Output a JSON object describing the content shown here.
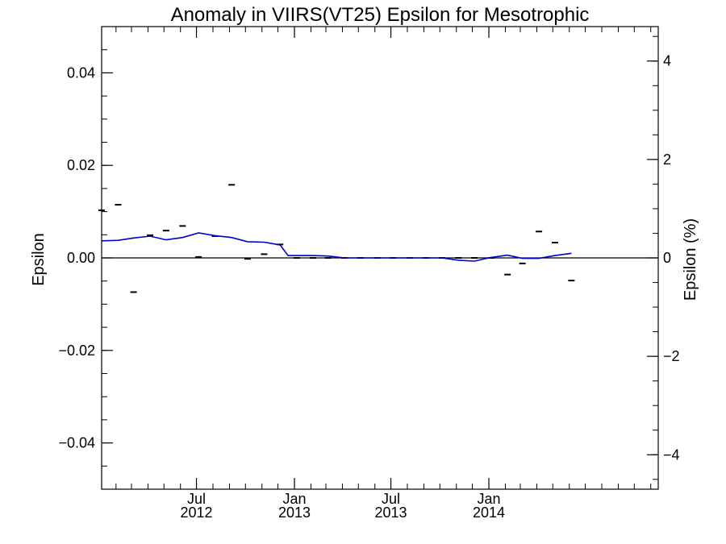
{
  "chart_data": {
    "type": "line",
    "title": "Anomaly in VIIRS(VT25) Epsilon for Mesotrophic",
    "ylabel_left": "Epsilon",
    "ylabel_right": "Epsilon (%)",
    "xlabel": "",
    "ylim_left": [
      -0.05,
      0.05
    ],
    "ylim_right": [
      -4.7,
      4.7
    ],
    "xlim": [
      "2012-01-05",
      "2014-11-15"
    ],
    "grid": false,
    "x_ticks": [
      {
        "month": "Jul",
        "year": "2012",
        "date": "2012-07-01"
      },
      {
        "month": "Jan",
        "year": "2013",
        "date": "2013-01-01"
      },
      {
        "month": "Jul",
        "year": "2013",
        "date": "2013-07-01"
      },
      {
        "month": "Jan",
        "year": "2014",
        "date": "2014-01-01"
      }
    ],
    "y_ticks_left": [
      "0.04",
      "0.02",
      "0.00",
      "−0.02",
      "−0.04"
    ],
    "y_tick_values_left": [
      0.04,
      0.02,
      0.0,
      -0.02,
      -0.04
    ],
    "y_ticks_right": [
      "4",
      "2",
      "0",
      "−2",
      "−4"
    ],
    "y_tick_values_right": [
      4,
      2,
      0,
      -2,
      -4
    ],
    "series": [
      {
        "kind": "markers",
        "color": "#000000",
        "points": [
          {
            "x": "2012-01-05",
            "y": 0.0103
          },
          {
            "x": "2012-02-05",
            "y": 0.0115
          },
          {
            "x": "2012-03-05",
            "y": -0.0074
          },
          {
            "x": "2012-04-05",
            "y": 0.0049
          },
          {
            "x": "2012-05-05",
            "y": 0.0059
          },
          {
            "x": "2012-06-05",
            "y": 0.0069
          },
          {
            "x": "2012-07-05",
            "y": 0.0002
          },
          {
            "x": "2012-08-05",
            "y": 0.0047
          },
          {
            "x": "2012-09-05",
            "y": 0.0158
          },
          {
            "x": "2012-10-05",
            "y": -0.0002
          },
          {
            "x": "2012-11-05",
            "y": 0.0008
          },
          {
            "x": "2012-12-05",
            "y": 0.0029
          },
          {
            "x": "2013-01-05",
            "y": 0.0
          },
          {
            "x": "2013-02-05",
            "y": 0.0
          },
          {
            "x": "2013-03-05",
            "y": 0.0
          },
          {
            "x": "2013-04-05",
            "y": 0.0
          },
          {
            "x": "2013-05-05",
            "y": 0.0
          },
          {
            "x": "2013-06-05",
            "y": 0.0
          },
          {
            "x": "2013-07-05",
            "y": 0.0
          },
          {
            "x": "2013-08-05",
            "y": 0.0
          },
          {
            "x": "2013-09-05",
            "y": 0.0
          },
          {
            "x": "2013-10-05",
            "y": 0.0
          },
          {
            "x": "2013-11-05",
            "y": 0.0
          },
          {
            "x": "2013-12-05",
            "y": 0.0
          },
          {
            "x": "2014-01-05",
            "y": 0.0
          },
          {
            "x": "2014-02-05",
            "y": -0.0036
          },
          {
            "x": "2014-03-05",
            "y": -0.0012
          },
          {
            "x": "2014-04-05",
            "y": 0.0057
          },
          {
            "x": "2014-05-05",
            "y": 0.0033
          },
          {
            "x": "2014-06-05",
            "y": -0.0049
          }
        ]
      },
      {
        "kind": "line",
        "color": "#0000cc",
        "points": [
          {
            "x": "2012-01-05",
            "y": 0.0037
          },
          {
            "x": "2012-02-05",
            "y": 0.0038
          },
          {
            "x": "2012-03-05",
            "y": 0.0043
          },
          {
            "x": "2012-04-05",
            "y": 0.0047
          },
          {
            "x": "2012-05-05",
            "y": 0.0039
          },
          {
            "x": "2012-06-05",
            "y": 0.0044
          },
          {
            "x": "2012-07-05",
            "y": 0.0054
          },
          {
            "x": "2012-08-05",
            "y": 0.0048
          },
          {
            "x": "2012-09-05",
            "y": 0.0044
          },
          {
            "x": "2012-10-05",
            "y": 0.0035
          },
          {
            "x": "2012-11-05",
            "y": 0.0034
          },
          {
            "x": "2012-12-05",
            "y": 0.0028
          },
          {
            "x": "2012-12-20",
            "y": 0.0005
          },
          {
            "x": "2013-01-05",
            "y": 0.0005
          },
          {
            "x": "2013-02-05",
            "y": 0.0005
          },
          {
            "x": "2013-03-05",
            "y": 0.0004
          },
          {
            "x": "2013-04-05",
            "y": 0.0
          },
          {
            "x": "2013-05-05",
            "y": 0.0
          },
          {
            "x": "2013-06-05",
            "y": 0.0
          },
          {
            "x": "2013-07-05",
            "y": 0.0
          },
          {
            "x": "2013-08-05",
            "y": 0.0
          },
          {
            "x": "2013-09-05",
            "y": 0.0
          },
          {
            "x": "2013-10-05",
            "y": 0.0
          },
          {
            "x": "2013-11-05",
            "y": -0.0005
          },
          {
            "x": "2013-12-05",
            "y": -0.0007
          },
          {
            "x": "2014-01-05",
            "y": 0.0001
          },
          {
            "x": "2014-02-05",
            "y": 0.0006
          },
          {
            "x": "2014-03-05",
            "y": -0.0001
          },
          {
            "x": "2014-04-05",
            "y": -0.0001
          },
          {
            "x": "2014-05-05",
            "y": 0.0005
          },
          {
            "x": "2014-06-05",
            "y": 0.001
          }
        ]
      }
    ]
  }
}
